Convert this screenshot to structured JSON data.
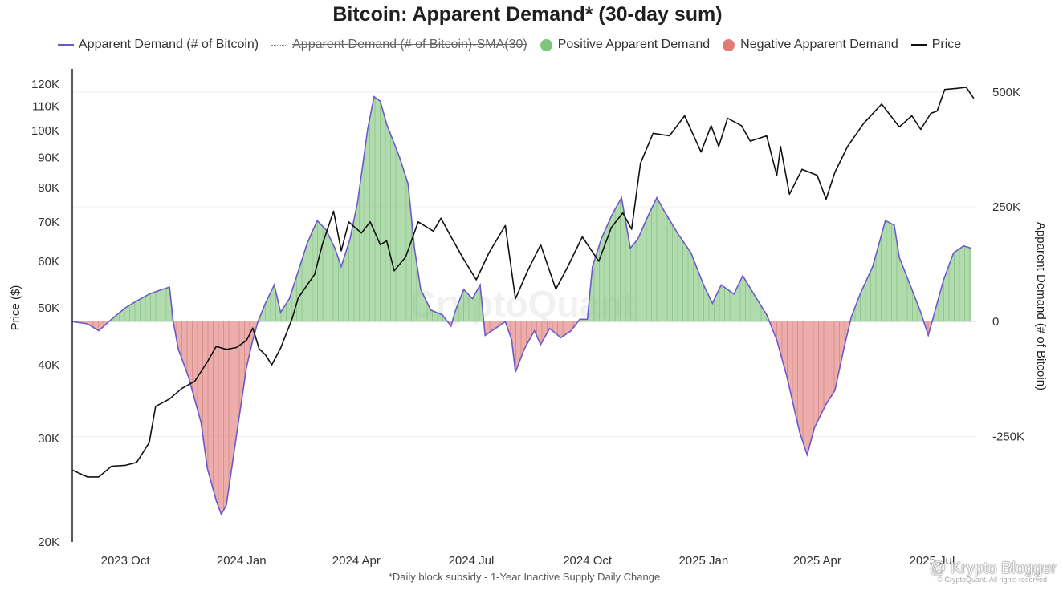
{
  "chart_data": {
    "type": "area",
    "title": "Bitcoin: Apparent Demand* (30-day sum)",
    "footnote": "*Daily block subsidy - 1-Year Inactive Supply Daily Change",
    "ylabel_left": "Price ($)",
    "ylabel_right": "Apparent Demand (# of Bitcoin)",
    "y_left_scale": "log",
    "y_left_ticks": [
      "20K",
      "30K",
      "40K",
      "50K",
      "60K",
      "70K",
      "80K",
      "90K",
      "100K",
      "110K",
      "120K"
    ],
    "y_left_tick_values": [
      20000,
      30000,
      40000,
      50000,
      60000,
      70000,
      80000,
      90000,
      100000,
      110000,
      120000
    ],
    "y_right_ticks": [
      "500K",
      "250K",
      "0",
      "-250K"
    ],
    "y_right_tick_values": [
      500000,
      250000,
      0,
      -250000
    ],
    "x_ticks": [
      "2023 Oct",
      "2024 Jan",
      "2024 Apr",
      "2024 Jul",
      "2024 Oct",
      "2025 Jan",
      "2025 Apr",
      "2025 Jul"
    ],
    "x_tick_dates": [
      "2023-10-01",
      "2024-01-01",
      "2024-04-01",
      "2024-07-01",
      "2024-10-01",
      "2025-01-01",
      "2025-04-01",
      "2025-07-01"
    ],
    "x_range": [
      "2023-08-20",
      "2025-08-05"
    ],
    "y_left_range": [
      20000,
      125000
    ],
    "y_right_range": [
      -480000,
      540000
    ],
    "grid": true,
    "legend_position": "top",
    "series": [
      {
        "name": "Apparent Demand (# of Bitcoin)",
        "color": "#6a5acd",
        "points": [
          [
            "2023-08-20",
            0
          ],
          [
            "2023-09-01",
            -5000
          ],
          [
            "2023-09-10",
            -20000
          ],
          [
            "2023-09-20",
            5000
          ],
          [
            "2023-10-01",
            30000
          ],
          [
            "2023-10-10",
            45000
          ],
          [
            "2023-10-20",
            60000
          ],
          [
            "2023-10-30",
            70000
          ],
          [
            "2023-11-05",
            75000
          ],
          [
            "2023-11-08",
            0
          ],
          [
            "2023-11-12",
            -60000
          ],
          [
            "2023-11-20",
            -120000
          ],
          [
            "2023-11-30",
            -220000
          ],
          [
            "2023-12-05",
            -320000
          ],
          [
            "2023-12-12",
            -390000
          ],
          [
            "2023-12-16",
            -420000
          ],
          [
            "2023-12-20",
            -400000
          ],
          [
            "2023-12-28",
            -250000
          ],
          [
            "2024-01-05",
            -100000
          ],
          [
            "2024-01-10",
            -40000
          ],
          [
            "2024-01-14",
            0
          ],
          [
            "2024-01-20",
            40000
          ],
          [
            "2024-01-27",
            80000
          ],
          [
            "2024-02-01",
            20000
          ],
          [
            "2024-02-08",
            50000
          ],
          [
            "2024-02-15",
            110000
          ],
          [
            "2024-02-22",
            170000
          ],
          [
            "2024-03-01",
            220000
          ],
          [
            "2024-03-08",
            200000
          ],
          [
            "2024-03-15",
            160000
          ],
          [
            "2024-03-20",
            120000
          ],
          [
            "2024-03-27",
            180000
          ],
          [
            "2024-04-02",
            260000
          ],
          [
            "2024-04-10",
            420000
          ],
          [
            "2024-04-15",
            490000
          ],
          [
            "2024-04-20",
            480000
          ],
          [
            "2024-04-25",
            430000
          ],
          [
            "2024-05-05",
            360000
          ],
          [
            "2024-05-12",
            300000
          ],
          [
            "2024-05-17",
            160000
          ],
          [
            "2024-05-22",
            70000
          ],
          [
            "2024-05-30",
            25000
          ],
          [
            "2024-06-08",
            15000
          ],
          [
            "2024-06-15",
            -10000
          ],
          [
            "2024-06-18",
            20000
          ],
          [
            "2024-06-25",
            70000
          ],
          [
            "2024-07-02",
            50000
          ],
          [
            "2024-07-08",
            80000
          ],
          [
            "2024-07-12",
            -30000
          ],
          [
            "2024-07-20",
            -15000
          ],
          [
            "2024-07-28",
            0
          ],
          [
            "2024-08-02",
            -40000
          ],
          [
            "2024-08-05",
            -110000
          ],
          [
            "2024-08-12",
            -60000
          ],
          [
            "2024-08-20",
            -20000
          ],
          [
            "2024-08-25",
            -50000
          ],
          [
            "2024-09-01",
            -15000
          ],
          [
            "2024-09-10",
            -35000
          ],
          [
            "2024-09-18",
            -20000
          ],
          [
            "2024-09-25",
            5000
          ],
          [
            "2024-10-01",
            5000
          ],
          [
            "2024-10-05",
            120000
          ],
          [
            "2024-10-12",
            180000
          ],
          [
            "2024-10-20",
            230000
          ],
          [
            "2024-10-28",
            270000
          ],
          [
            "2024-11-04",
            160000
          ],
          [
            "2024-11-10",
            180000
          ],
          [
            "2024-11-18",
            230000
          ],
          [
            "2024-11-25",
            270000
          ],
          [
            "2024-12-01",
            240000
          ],
          [
            "2024-12-12",
            190000
          ],
          [
            "2024-12-22",
            150000
          ],
          [
            "2025-01-01",
            80000
          ],
          [
            "2025-01-08",
            40000
          ],
          [
            "2025-01-15",
            80000
          ],
          [
            "2025-01-25",
            60000
          ],
          [
            "2025-02-01",
            100000
          ],
          [
            "2025-02-12",
            50000
          ],
          [
            "2025-02-20",
            15000
          ],
          [
            "2025-02-28",
            -40000
          ],
          [
            "2025-03-08",
            -120000
          ],
          [
            "2025-03-18",
            -240000
          ],
          [
            "2025-03-24",
            -290000
          ],
          [
            "2025-03-30",
            -230000
          ],
          [
            "2025-04-08",
            -180000
          ],
          [
            "2025-04-15",
            -150000
          ],
          [
            "2025-04-22",
            -60000
          ],
          [
            "2025-04-28",
            10000
          ],
          [
            "2025-05-05",
            60000
          ],
          [
            "2025-05-15",
            120000
          ],
          [
            "2025-05-25",
            220000
          ],
          [
            "2025-06-01",
            210000
          ],
          [
            "2025-06-05",
            140000
          ],
          [
            "2025-06-15",
            70000
          ],
          [
            "2025-06-22",
            20000
          ],
          [
            "2025-06-28",
            -30000
          ],
          [
            "2025-07-03",
            20000
          ],
          [
            "2025-07-10",
            90000
          ],
          [
            "2025-07-18",
            150000
          ],
          [
            "2025-07-26",
            165000
          ],
          [
            "2025-08-01",
            160000
          ]
        ]
      },
      {
        "name": "Apparent Demand (# of Bitcoin)-SMA(30)",
        "color": "#999999",
        "hidden": true,
        "points": []
      },
      {
        "name": "Positive Apparent Demand",
        "color": "#7fc57b"
      },
      {
        "name": "Negative Apparent Demand",
        "color": "#e07b78"
      },
      {
        "name": "Price",
        "color": "#111111",
        "points": [
          [
            "2023-08-20",
            26500
          ],
          [
            "2023-09-01",
            25800
          ],
          [
            "2023-09-10",
            25800
          ],
          [
            "2023-09-20",
            26900
          ],
          [
            "2023-10-01",
            27000
          ],
          [
            "2023-10-10",
            27300
          ],
          [
            "2023-10-20",
            29500
          ],
          [
            "2023-10-25",
            34000
          ],
          [
            "2023-11-05",
            35000
          ],
          [
            "2023-11-15",
            36500
          ],
          [
            "2023-11-25",
            37500
          ],
          [
            "2023-12-05",
            40500
          ],
          [
            "2023-12-12",
            43000
          ],
          [
            "2023-12-20",
            42500
          ],
          [
            "2023-12-28",
            42800
          ],
          [
            "2024-01-05",
            44000
          ],
          [
            "2024-01-10",
            46200
          ],
          [
            "2024-01-15",
            42600
          ],
          [
            "2024-01-20",
            41600
          ],
          [
            "2024-01-25",
            40000
          ],
          [
            "2024-02-01",
            42700
          ],
          [
            "2024-02-10",
            47800
          ],
          [
            "2024-02-15",
            52000
          ],
          [
            "2024-02-28",
            57000
          ],
          [
            "2024-03-05",
            64000
          ],
          [
            "2024-03-14",
            73000
          ],
          [
            "2024-03-20",
            62500
          ],
          [
            "2024-03-26",
            70000
          ],
          [
            "2024-04-05",
            67000
          ],
          [
            "2024-04-12",
            70000
          ],
          [
            "2024-04-20",
            64000
          ],
          [
            "2024-04-25",
            65000
          ],
          [
            "2024-05-01",
            57800
          ],
          [
            "2024-05-10",
            61000
          ],
          [
            "2024-05-20",
            70000
          ],
          [
            "2024-06-01",
            67500
          ],
          [
            "2024-06-07",
            71000
          ],
          [
            "2024-06-15",
            66000
          ],
          [
            "2024-06-25",
            60500
          ],
          [
            "2024-07-05",
            55800
          ],
          [
            "2024-07-15",
            62000
          ],
          [
            "2024-07-28",
            69000
          ],
          [
            "2024-08-05",
            51800
          ],
          [
            "2024-08-15",
            58000
          ],
          [
            "2024-08-25",
            64000
          ],
          [
            "2024-09-06",
            53800
          ],
          [
            "2024-09-15",
            58500
          ],
          [
            "2024-09-27",
            66000
          ],
          [
            "2024-10-10",
            60000
          ],
          [
            "2024-10-20",
            68500
          ],
          [
            "2024-10-29",
            72500
          ],
          [
            "2024-11-05",
            68000
          ],
          [
            "2024-11-12",
            88000
          ],
          [
            "2024-11-22",
            99000
          ],
          [
            "2024-12-05",
            98000
          ],
          [
            "2024-12-17",
            106000
          ],
          [
            "2024-12-30",
            92000
          ],
          [
            "2025-01-07",
            102000
          ],
          [
            "2025-01-13",
            94000
          ],
          [
            "2025-01-20",
            105000
          ],
          [
            "2025-01-31",
            102000
          ],
          [
            "2025-02-07",
            96000
          ],
          [
            "2025-02-20",
            98000
          ],
          [
            "2025-02-28",
            84000
          ],
          [
            "2025-03-03",
            94000
          ],
          [
            "2025-03-10",
            78000
          ],
          [
            "2025-03-20",
            86000
          ],
          [
            "2025-04-01",
            84000
          ],
          [
            "2025-04-08",
            76500
          ],
          [
            "2025-04-15",
            85000
          ],
          [
            "2025-04-25",
            94000
          ],
          [
            "2025-05-08",
            103000
          ],
          [
            "2025-05-22",
            111000
          ],
          [
            "2025-06-05",
            101500
          ],
          [
            "2025-06-15",
            106000
          ],
          [
            "2025-06-22",
            100500
          ],
          [
            "2025-06-30",
            107000
          ],
          [
            "2025-07-05",
            108000
          ],
          [
            "2025-07-11",
            117500
          ],
          [
            "2025-07-20",
            118000
          ],
          [
            "2025-07-28",
            118500
          ],
          [
            "2025-08-03",
            113500
          ]
        ]
      }
    ]
  }
}
